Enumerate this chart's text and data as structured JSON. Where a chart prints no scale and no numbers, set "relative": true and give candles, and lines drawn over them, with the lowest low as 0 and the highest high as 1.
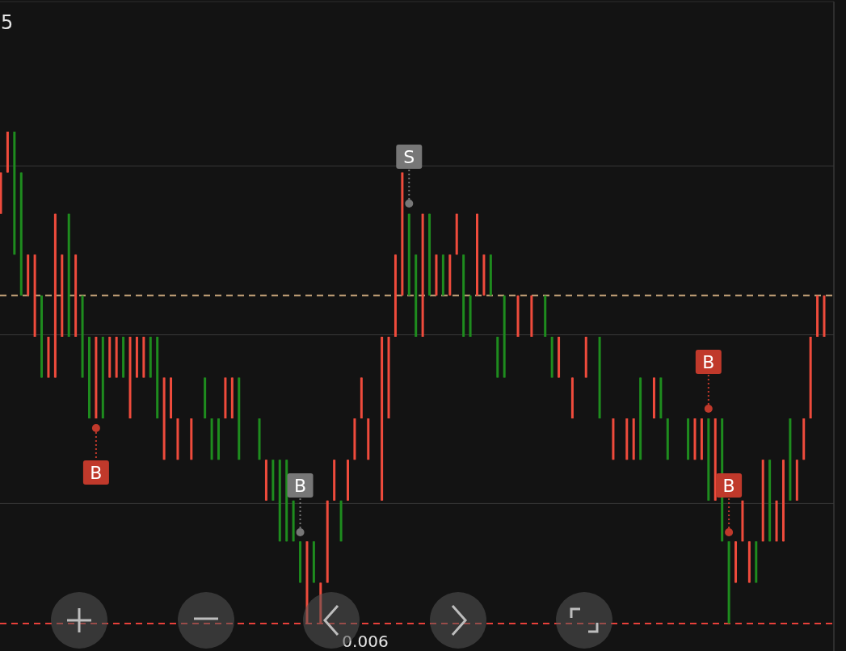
{
  "chart_data": {
    "type": "candlestick",
    "relative": true,
    "categories": [
      null,
      null,
      null,
      null,
      null,
      null,
      null,
      null,
      null,
      null,
      null,
      null,
      null,
      null,
      null,
      null,
      null,
      null,
      null,
      null,
      null,
      null,
      null,
      null,
      null,
      null,
      null,
      null,
      null,
      null,
      null,
      null,
      null,
      null,
      null,
      null,
      null,
      null,
      null,
      null,
      null,
      null,
      null,
      null,
      null,
      null,
      null,
      null,
      null,
      null,
      null,
      null,
      null,
      null,
      null,
      null,
      null,
      null,
      null,
      null,
      null,
      null,
      null,
      null,
      null,
      null,
      null,
      null,
      null,
      null,
      null,
      null,
      null,
      null,
      null,
      null,
      null,
      null,
      null,
      null,
      null,
      null,
      null,
      null,
      null,
      null,
      null,
      null,
      null,
      null,
      null,
      null,
      null,
      null,
      null,
      null,
      null,
      null,
      null,
      null,
      null,
      null,
      null,
      null,
      null,
      null,
      null,
      null,
      null,
      null,
      null,
      null,
      null,
      null,
      null,
      null,
      null,
      null,
      null,
      null,
      null,
      null
    ],
    "ohlc": [
      [
        0.833,
        0.917,
        0.833,
        0.917
      ],
      [
        0.917,
        1,
        0.917,
        1
      ],
      [
        1,
        1,
        0.75,
        0.75
      ],
      [
        0.917,
        0.917,
        0.667,
        0.667
      ],
      [
        0.667,
        0.75,
        0.667,
        0.75
      ],
      [
        0.583,
        0.75,
        0.583,
        0.75
      ],
      [
        0.667,
        0.667,
        0.5,
        0.5
      ],
      [
        0.5,
        0.583,
        0.5,
        0.583
      ],
      [
        0.5,
        0.833,
        0.5,
        0.833
      ],
      [
        0.583,
        0.75,
        0.583,
        0.75
      ],
      [
        0.833,
        0.833,
        0.583,
        0.583
      ],
      [
        0.583,
        0.75,
        0.583,
        0.75
      ],
      [
        0.667,
        0.667,
        0.5,
        0.5
      ],
      [
        0.583,
        0.583,
        0.417,
        0.417
      ],
      [
        0.417,
        0.583,
        0.417,
        0.583
      ],
      [
        0.583,
        0.583,
        0.417,
        0.417
      ],
      [
        0.5,
        0.583,
        0.5,
        0.583
      ],
      [
        0.5,
        0.583,
        0.5,
        0.583
      ],
      [
        0.583,
        0.583,
        0.5,
        0.5
      ],
      [
        0.417,
        0.583,
        0.417,
        0.583
      ],
      [
        0.5,
        0.583,
        0.5,
        0.583
      ],
      [
        0.5,
        0.583,
        0.5,
        0.583
      ],
      [
        0.583,
        0.583,
        0.5,
        0.5
      ],
      [
        0.583,
        0.583,
        0.417,
        0.417
      ],
      [
        0.333,
        0.5,
        0.333,
        0.5
      ],
      [
        0.417,
        0.5,
        0.417,
        0.5
      ],
      [
        0.333,
        0.417,
        0.333,
        0.417
      ],
      null,
      [
        0.333,
        0.417,
        0.333,
        0.417
      ],
      null,
      [
        0.5,
        0.5,
        0.417,
        0.417
      ],
      [
        0.417,
        0.417,
        0.333,
        0.333
      ],
      [
        0.417,
        0.417,
        0.333,
        0.333
      ],
      [
        0.417,
        0.5,
        0.417,
        0.5
      ],
      [
        0.417,
        0.5,
        0.417,
        0.5
      ],
      [
        0.5,
        0.5,
        0.333,
        0.333
      ],
      null,
      null,
      [
        0.417,
        0.417,
        0.333,
        0.333
      ],
      [
        0.25,
        0.333,
        0.25,
        0.333
      ],
      [
        0.333,
        0.333,
        0.25,
        0.25
      ],
      [
        0.333,
        0.333,
        0.167,
        0.167
      ],
      [
        0.333,
        0.333,
        0.167,
        0.167
      ],
      [
        0.25,
        0.25,
        0.167,
        0.167
      ],
      [
        0.167,
        0.167,
        0.083,
        0.083
      ],
      [
        0,
        0.167,
        0,
        0.167
      ],
      [
        0.167,
        0.167,
        0.083,
        0.083
      ],
      [
        0,
        0.083,
        0,
        0.083
      ],
      [
        0.083,
        0.25,
        0.083,
        0.25
      ],
      [
        0.25,
        0.333,
        0.25,
        0.333
      ],
      [
        0.25,
        0.25,
        0.167,
        0.167
      ],
      [
        0.25,
        0.333,
        0.25,
        0.333
      ],
      [
        0.333,
        0.417,
        0.333,
        0.417
      ],
      [
        0.417,
        0.5,
        0.417,
        0.5
      ],
      [
        0.333,
        0.417,
        0.333,
        0.417
      ],
      null,
      [
        0.25,
        0.583,
        0.25,
        0.583
      ],
      [
        0.417,
        0.583,
        0.417,
        0.583
      ],
      [
        0.583,
        0.75,
        0.583,
        0.75
      ],
      [
        0.667,
        0.917,
        0.667,
        0.917
      ],
      [
        0.833,
        0.833,
        0.667,
        0.667
      ],
      [
        0.75,
        0.75,
        0.583,
        0.583
      ],
      [
        0.583,
        0.833,
        0.583,
        0.833
      ],
      [
        0.833,
        0.833,
        0.667,
        0.667
      ],
      [
        0.667,
        0.75,
        0.667,
        0.75
      ],
      [
        0.75,
        0.75,
        0.667,
        0.667
      ],
      [
        0.667,
        0.75,
        0.667,
        0.75
      ],
      [
        0.75,
        0.833,
        0.75,
        0.833
      ],
      [
        0.75,
        0.75,
        0.583,
        0.583
      ],
      [
        0.667,
        0.667,
        0.583,
        0.583
      ],
      [
        0.667,
        0.833,
        0.667,
        0.833
      ],
      [
        0.667,
        0.75,
        0.667,
        0.75
      ],
      [
        0.75,
        0.75,
        0.667,
        0.667
      ],
      [
        0.583,
        0.583,
        0.5,
        0.5
      ],
      [
        0.667,
        0.667,
        0.5,
        0.5
      ],
      null,
      [
        0.583,
        0.667,
        0.583,
        0.667
      ],
      null,
      [
        0.583,
        0.667,
        0.583,
        0.667
      ],
      null,
      [
        0.667,
        0.667,
        0.583,
        0.583
      ],
      [
        0.583,
        0.583,
        0.5,
        0.5
      ],
      [
        0.5,
        0.583,
        0.5,
        0.583
      ],
      null,
      [
        0.417,
        0.5,
        0.417,
        0.5
      ],
      null,
      [
        0.5,
        0.583,
        0.5,
        0.583
      ],
      null,
      [
        0.583,
        0.583,
        0.417,
        0.417
      ],
      null,
      [
        0.333,
        0.417,
        0.333,
        0.417
      ],
      null,
      [
        0.333,
        0.417,
        0.333,
        0.417
      ],
      [
        0.333,
        0.417,
        0.333,
        0.417
      ],
      [
        0.5,
        0.5,
        0.333,
        0.333
      ],
      null,
      [
        0.417,
        0.5,
        0.417,
        0.5
      ],
      [
        0.5,
        0.5,
        0.417,
        0.417
      ],
      [
        0.417,
        0.417,
        0.333,
        0.333
      ],
      null,
      null,
      [
        0.417,
        0.417,
        0.333,
        0.333
      ],
      [
        0.333,
        0.417,
        0.333,
        0.417
      ],
      [
        0.333,
        0.417,
        0.333,
        0.417
      ],
      [
        0.417,
        0.417,
        0.25,
        0.25
      ],
      [
        0.25,
        0.417,
        0.25,
        0.417
      ],
      [
        0.417,
        0.417,
        0.167,
        0.167
      ],
      [
        0.167,
        0.167,
        0,
        0
      ],
      [
        0.083,
        0.167,
        0.083,
        0.167
      ],
      [
        0.167,
        0.25,
        0.167,
        0.25
      ],
      [
        0.083,
        0.167,
        0.083,
        0.167
      ],
      [
        0.167,
        0.167,
        0.083,
        0.083
      ],
      [
        0.167,
        0.333,
        0.167,
        0.333
      ],
      [
        0.333,
        0.333,
        0.167,
        0.167
      ],
      [
        0.167,
        0.25,
        0.167,
        0.25
      ],
      [
        0.167,
        0.333,
        0.167,
        0.333
      ],
      [
        0.417,
        0.417,
        0.25,
        0.25
      ],
      [
        0.25,
        0.333,
        0.25,
        0.333
      ],
      [
        0.333,
        0.417,
        0.333,
        0.417
      ],
      [
        0.417,
        0.583,
        0.417,
        0.583
      ],
      [
        0.583,
        0.667,
        0.583,
        0.667
      ],
      [
        0.583,
        0.667,
        0.583,
        0.667
      ]
    ],
    "colors": [
      "#ef4b3c",
      "#ef4b3c",
      "#1e8c1e",
      "#1e8c1e",
      "#ef4b3c",
      "#ef4b3c",
      "#1e8c1e",
      "#ef4b3c",
      "#ef4b3c",
      "#ef4b3c",
      "#1e8c1e",
      "#ef4b3c",
      "#1e8c1e",
      "#1e8c1e",
      "#ef4b3c",
      "#1e8c1e",
      "#ef4b3c",
      "#ef4b3c",
      "#1e8c1e",
      "#ef4b3c",
      "#ef4b3c",
      "#ef4b3c",
      "#1e8c1e",
      "#1e8c1e",
      "#ef4b3c",
      "#ef4b3c",
      "#ef4b3c",
      null,
      "#ef4b3c",
      null,
      "#1e8c1e",
      "#1e8c1e",
      "#1e8c1e",
      "#ef4b3c",
      "#ef4b3c",
      "#1e8c1e",
      null,
      null,
      "#1e8c1e",
      "#ef4b3c",
      "#1e8c1e",
      "#1e8c1e",
      "#1e8c1e",
      "#1e8c1e",
      "#1e8c1e",
      "#ef4b3c",
      "#1e8c1e",
      "#ef4b3c",
      "#ef4b3c",
      "#ef4b3c",
      "#1e8c1e",
      "#ef4b3c",
      "#ef4b3c",
      "#ef4b3c",
      "#ef4b3c",
      null,
      "#ef4b3c",
      "#ef4b3c",
      "#ef4b3c",
      "#ef4b3c",
      "#1e8c1e",
      "#1e8c1e",
      "#ef4b3c",
      "#1e8c1e",
      "#ef4b3c",
      "#1e8c1e",
      "#ef4b3c",
      "#ef4b3c",
      "#1e8c1e",
      "#1e8c1e",
      "#ef4b3c",
      "#ef4b3c",
      "#1e8c1e",
      "#1e8c1e",
      "#1e8c1e",
      null,
      "#ef4b3c",
      null,
      "#ef4b3c",
      null,
      "#1e8c1e",
      "#1e8c1e",
      "#ef4b3c",
      null,
      "#ef4b3c",
      null,
      "#ef4b3c",
      null,
      "#1e8c1e",
      null,
      "#ef4b3c",
      null,
      "#ef4b3c",
      "#ef4b3c",
      "#1e8c1e",
      null,
      "#ef4b3c",
      "#1e8c1e",
      "#1e8c1e",
      null,
      null,
      "#1e8c1e",
      "#ef4b3c",
      "#ef4b3c",
      "#1e8c1e",
      "#ef4b3c",
      "#1e8c1e",
      "#1e8c1e",
      "#ef4b3c",
      "#ef4b3c",
      "#ef4b3c",
      "#1e8c1e",
      "#ef4b3c",
      "#1e8c1e",
      "#ef4b3c",
      "#ef4b3c",
      "#1e8c1e",
      "#ef4b3c",
      "#ef4b3c",
      "#ef4b3c",
      "#ef4b3c",
      "#ef4b3c"
    ],
    "ref_lines": [
      {
        "axis": "y",
        "value": 0.93,
        "color": "#3a3a3a",
        "line_style": "solid"
      },
      {
        "axis": "y",
        "value": 0.587,
        "color": "#3a3a3a",
        "line_style": "solid"
      },
      {
        "axis": "y",
        "value": 0.244,
        "color": "#3a3a3a",
        "line_style": "solid"
      },
      {
        "axis": "y",
        "value": 0.667,
        "color": "#c9a77c",
        "line_style": "dashed"
      },
      {
        "axis": "y",
        "value": 0,
        "color": "#e8403a",
        "line_style": "dashed"
      }
    ],
    "annotations": [
      "5",
      "0.006",
      "B",
      "S",
      "B",
      "B",
      "B"
    ]
  }
}
